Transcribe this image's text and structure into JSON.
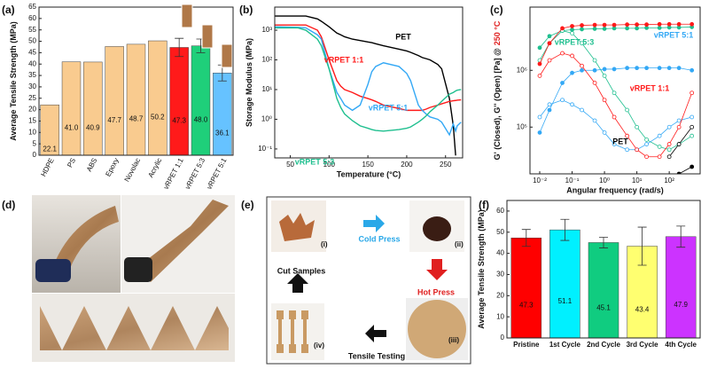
{
  "panel_labels": [
    "(a)",
    "(b)",
    "(c)",
    "(d)",
    "(e)",
    "(f)"
  ],
  "process": {
    "images": [
      "(i)",
      "(ii)",
      "(iii)",
      "(iv)"
    ],
    "steps": [
      "Cold Press",
      "Hot Press",
      "Tensile Testing",
      "Cut Samples"
    ]
  },
  "chart_data": [
    {
      "type": "bar",
      "y_label": "Average Tensile Strength (MPa)",
      "categories": [
        "HDPE",
        "PS",
        "ABS",
        "Epoxy",
        "Novolac",
        "Acrylic",
        "vRPET 1:1",
        "vRPET 5:3",
        "vRPET 5:1"
      ],
      "values": [
        22.1,
        41.0,
        40.9,
        47.7,
        48.7,
        50.2,
        47.3,
        48.0,
        36.1
      ],
      "value_labels": [
        "22.1",
        "41.0",
        "40.9",
        "47.7",
        "48.7",
        "50.2",
        "47.3",
        "48.0",
        "36.1"
      ],
      "errors": [
        null,
        null,
        null,
        null,
        null,
        null,
        4,
        3,
        3.5
      ],
      "colors": [
        "#f9cb8f",
        "#f9cb8f",
        "#f9cb8f",
        "#f9cb8f",
        "#f9cb8f",
        "#f9cb8f",
        "#ff1a1a",
        "#1fcf7a",
        "#66c2ff"
      ],
      "ylim": [
        0,
        65
      ],
      "yticks": [
        0,
        5,
        10,
        15,
        20,
        25,
        30,
        35,
        40,
        45,
        50,
        55,
        60,
        65
      ]
    },
    {
      "type": "line",
      "x_label": "Temperature (°C)",
      "y_label": "Storage Modulus (MPa)",
      "ylog": true,
      "x": [
        30,
        60,
        70,
        85,
        90,
        100,
        110,
        115,
        120,
        130,
        140,
        150,
        155,
        160,
        170,
        190,
        200,
        205,
        215,
        220,
        225,
        230,
        240,
        245,
        255,
        260,
        263,
        265,
        270
      ],
      "series": [
        {
          "name": "PET",
          "color": "#000000",
          "values": [
            3000,
            3000,
            3000,
            2400,
            2000,
            1300,
            800,
            700,
            600,
            500,
            450,
            400,
            380,
            350,
            300,
            230,
            200,
            180,
            140,
            120,
            110,
            100,
            70,
            50,
            5,
            0.6,
            0.06,
            null,
            null
          ]
        },
        {
          "name": "vRPET 1:1",
          "color": "#ff1a1a",
          "values": [
            1500,
            1500,
            1500,
            1000,
            600,
            100,
            20,
            13,
            10,
            8,
            6,
            5,
            4.5,
            4,
            3,
            2.3,
            2,
            2,
            2,
            2,
            2.2,
            2.5,
            3,
            3.3,
            4,
            4.2,
            4.3,
            4.4,
            4.5
          ]
        },
        {
          "name": "vRPET 5:1",
          "color": "#33a8f5",
          "values": [
            1300,
            1250,
            1200,
            700,
            500,
            50,
            8,
            5,
            3,
            2,
            3,
            15,
            40,
            60,
            80,
            60,
            35,
            20,
            3,
            2,
            1.5,
            1.2,
            1,
            0.8,
            0.3,
            0.7,
            0.4,
            0.6,
            0.8
          ]
        },
        {
          "name": "vRPET 5:3",
          "color": "#1fbf8f",
          "values": [
            1200,
            1200,
            1000,
            500,
            300,
            50,
            5,
            2.5,
            1.5,
            0.9,
            0.6,
            0.5,
            0.45,
            0.42,
            0.4,
            0.45,
            0.5,
            0.55,
            0.8,
            1,
            1.3,
            1.8,
            3,
            4,
            7,
            8,
            9,
            9.5,
            10
          ]
        }
      ],
      "xlim": [
        30,
        272
      ],
      "xticks": [
        50,
        100,
        150,
        200,
        250
      ],
      "ylim": [
        0.05,
        6000
      ],
      "yticks": [
        {
          "value": 0.1,
          "label": "10⁻¹"
        },
        {
          "value": 1,
          "label": "10⁰"
        },
        {
          "value": 10,
          "label": "10¹"
        },
        {
          "value": 100,
          "label": "10²"
        },
        {
          "value": 1000,
          "label": "10³"
        }
      ]
    },
    {
      "type": "line",
      "x_label": "Angular frequency (rad/s)",
      "y_label": "G' (Closed), G'' (Open) [Pa] @",
      "y_label_note": "250 °C",
      "xlog": true,
      "ylog": true,
      "markers": true,
      "x": [
        0.01,
        0.02,
        0.05,
        0.1,
        0.2,
        0.5,
        1,
        2,
        5,
        10,
        20,
        50,
        100,
        200,
        500
      ],
      "series": [
        {
          "name": "vRPET 5:3",
          "color": "#1fbf8f",
          "values": [
            2500000,
            4000000,
            5000000,
            5200000,
            5300000,
            5400000,
            5400000,
            5500000,
            5500000,
            5500000,
            5600000,
            5600000,
            5700000,
            5700000,
            5800000
          ],
          "loss_values": [
            1500000,
            3000000,
            5000000,
            4500000,
            3000000,
            1500000,
            800000,
            400000,
            200000,
            100000,
            60000,
            45000,
            40000,
            50000,
            70000
          ]
        },
        {
          "name": "vRPET 5:1",
          "color": "#33a8f5",
          "values": [
            80000,
            200000,
            600000,
            900000,
            1000000,
            1000000,
            1050000,
            1050000,
            1100000,
            1100000,
            1100000,
            1100000,
            1100000,
            1100000,
            1000000
          ],
          "loss_values": [
            150000,
            250000,
            300000,
            250000,
            200000,
            130000,
            80000,
            50000,
            40000,
            40000,
            50000,
            70000,
            100000,
            130000,
            150000
          ]
        },
        {
          "name": "vRPET 1:1",
          "color": "#ff1a1a",
          "values": [
            1300000,
            3000000,
            5500000,
            6000000,
            6200000,
            6300000,
            6300000,
            6300000,
            6400000,
            6400000,
            6400000,
            6500000,
            6500000,
            6500000,
            6500000
          ],
          "loss_values": [
            800000,
            1500000,
            2000000,
            1800000,
            1200000,
            600000,
            300000,
            150000,
            70000,
            40000,
            30000,
            30000,
            50000,
            100000,
            400000
          ]
        },
        {
          "name": "PET",
          "color": "#000000",
          "values": [
            null,
            null,
            null,
            null,
            null,
            null,
            null,
            null,
            null,
            null,
            null,
            null,
            null,
            15000,
            20000
          ],
          "loss_values": [
            null,
            null,
            null,
            null,
            null,
            null,
            null,
            null,
            null,
            null,
            null,
            null,
            30000,
            50000,
            100000
          ]
        }
      ],
      "xlim": [
        0.005,
        900
      ],
      "xticks": [
        {
          "value": 0.01,
          "label": "10⁻²"
        },
        {
          "value": 0.1,
          "label": "10⁻¹"
        },
        {
          "value": 1,
          "label": "10⁰"
        },
        {
          "value": 10,
          "label": "10¹"
        },
        {
          "value": 100,
          "label": "10²"
        }
      ],
      "ylim": [
        15000,
        13000000
      ],
      "yticks": [
        {
          "value": 100000,
          "label": "10⁵"
        },
        {
          "value": 1000000,
          "label": "10⁶"
        }
      ]
    },
    {
      "type": "bar",
      "y_label": "Average Tensile Strength (MPa)",
      "categories": [
        "Pristine",
        "1st Cycle",
        "2nd Cycle",
        "3rd Cycle",
        "4th Cycle"
      ],
      "values": [
        47.3,
        51.1,
        45.1,
        43.4,
        47.9
      ],
      "errors": [
        4,
        5,
        2.5,
        9,
        5
      ],
      "colors": [
        "#ff0000",
        "#00f0ff",
        "#10cc80",
        "#ffff70",
        "#cc33ff"
      ],
      "ylim": [
        0,
        65
      ],
      "yticks": [
        0,
        10,
        20,
        30,
        40,
        50,
        60
      ]
    }
  ]
}
